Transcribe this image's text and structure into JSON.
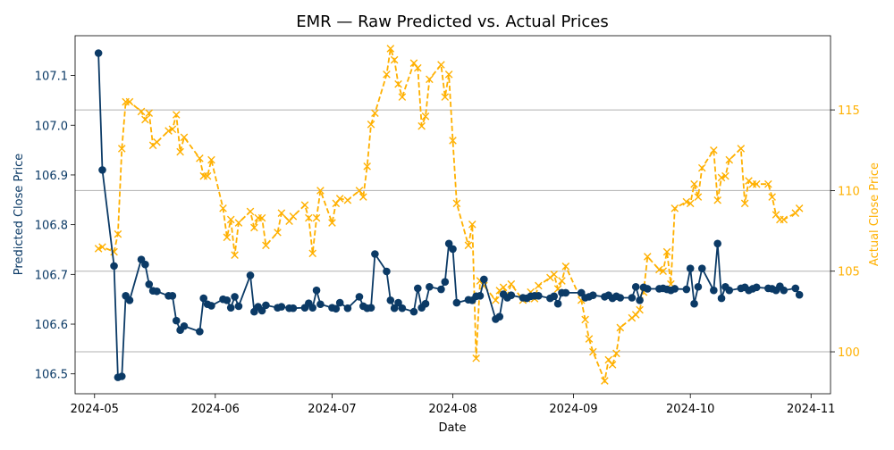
{
  "chart_data": {
    "type": "line",
    "title": "EMR — Raw Predicted vs. Actual Prices",
    "xlabel": "Date",
    "ylabel_left": "Predicted Close Price",
    "ylabel_right": "Actual Close Price",
    "xlim": [
      "2024-04-26",
      "2024-11-06"
    ],
    "ylim_left": [
      106.46,
      107.18
    ],
    "ylim_right": [
      97.4,
      119.6
    ],
    "x_ticks": [
      "2024-05-01",
      "2024-06-01",
      "2024-07-01",
      "2024-08-01",
      "2024-09-01",
      "2024-10-01",
      "2024-11-01"
    ],
    "x_tick_labels": [
      "2024-05",
      "2024-06",
      "2024-07",
      "2024-08",
      "2024-09",
      "2024-10",
      "2024-11"
    ],
    "y_ticks_left": [
      106.5,
      106.6,
      106.7,
      106.8,
      106.9,
      107.0,
      107.1
    ],
    "y_tick_labels_left": [
      "106.5",
      "106.6",
      "106.7",
      "106.8",
      "106.9",
      "107.0",
      "107.1"
    ],
    "y_ticks_right": [
      100,
      105,
      110,
      115
    ],
    "y_tick_labels_right": [
      "100",
      "105",
      "110",
      "115"
    ],
    "grid": "horizontal lines at right-axis ticks",
    "colors": {
      "predicted": "#0b3a66",
      "actual": "#ffb000",
      "grid": "#b0b0b0",
      "axis": "#000000"
    },
    "series": [
      {
        "axis": "left",
        "style": "solid line with circle markers",
        "points": [
          [
            "2024-05-02",
            107.145
          ],
          [
            "2024-05-03",
            106.91
          ],
          [
            "2024-05-06",
            106.717
          ],
          [
            "2024-05-07",
            106.493
          ],
          [
            "2024-05-08",
            106.495
          ],
          [
            "2024-05-09",
            106.657
          ],
          [
            "2024-05-10",
            106.648
          ],
          [
            "2024-05-13",
            106.73
          ],
          [
            "2024-05-14",
            106.72
          ],
          [
            "2024-05-15",
            106.68
          ],
          [
            "2024-05-16",
            106.667
          ],
          [
            "2024-05-17",
            106.666
          ],
          [
            "2024-05-20",
            106.657
          ],
          [
            "2024-05-21",
            106.657
          ],
          [
            "2024-05-22",
            106.607
          ],
          [
            "2024-05-23",
            106.588
          ],
          [
            "2024-05-24",
            106.596
          ],
          [
            "2024-05-28",
            106.585
          ],
          [
            "2024-05-29",
            106.652
          ],
          [
            "2024-05-30",
            106.64
          ],
          [
            "2024-05-31",
            106.637
          ],
          [
            "2024-06-03",
            106.65
          ],
          [
            "2024-06-04",
            106.648
          ],
          [
            "2024-06-05",
            106.633
          ],
          [
            "2024-06-06",
            106.655
          ],
          [
            "2024-06-07",
            106.636
          ],
          [
            "2024-06-10",
            106.698
          ],
          [
            "2024-06-11",
            106.625
          ],
          [
            "2024-06-12",
            106.635
          ],
          [
            "2024-06-13",
            106.627
          ],
          [
            "2024-06-14",
            106.638
          ],
          [
            "2024-06-17",
            106.633
          ],
          [
            "2024-06-18",
            106.635
          ],
          [
            "2024-06-20",
            106.632
          ],
          [
            "2024-06-21",
            106.632
          ],
          [
            "2024-06-24",
            106.633
          ],
          [
            "2024-06-25",
            106.642
          ],
          [
            "2024-06-26",
            106.633
          ],
          [
            "2024-06-27",
            106.668
          ],
          [
            "2024-06-28",
            106.64
          ],
          [
            "2024-07-01",
            106.633
          ],
          [
            "2024-07-02",
            106.631
          ],
          [
            "2024-07-03",
            106.643
          ],
          [
            "2024-07-05",
            106.632
          ],
          [
            "2024-07-08",
            106.655
          ],
          [
            "2024-07-09",
            106.636
          ],
          [
            "2024-07-10",
            106.632
          ],
          [
            "2024-07-11",
            106.633
          ],
          [
            "2024-07-12",
            106.741
          ],
          [
            "2024-07-15",
            106.706
          ],
          [
            "2024-07-16",
            106.648
          ],
          [
            "2024-07-17",
            106.632
          ],
          [
            "2024-07-18",
            106.643
          ],
          [
            "2024-07-19",
            106.632
          ],
          [
            "2024-07-22",
            106.625
          ],
          [
            "2024-07-23",
            106.672
          ],
          [
            "2024-07-24",
            106.633
          ],
          [
            "2024-07-25",
            106.641
          ],
          [
            "2024-07-26",
            106.675
          ],
          [
            "2024-07-29",
            106.67
          ],
          [
            "2024-07-30",
            106.685
          ],
          [
            "2024-07-31",
            106.762
          ],
          [
            "2024-08-01",
            106.751
          ],
          [
            "2024-08-02",
            106.643
          ],
          [
            "2024-08-05",
            106.649
          ],
          [
            "2024-08-06",
            106.648
          ],
          [
            "2024-08-07",
            106.656
          ],
          [
            "2024-08-08",
            106.657
          ],
          [
            "2024-08-09",
            106.69
          ],
          [
            "2024-08-12",
            106.61
          ],
          [
            "2024-08-13",
            106.615
          ],
          [
            "2024-08-14",
            106.66
          ],
          [
            "2024-08-15",
            106.653
          ],
          [
            "2024-08-16",
            106.658
          ],
          [
            "2024-08-19",
            106.653
          ],
          [
            "2024-08-20",
            106.652
          ],
          [
            "2024-08-21",
            106.656
          ],
          [
            "2024-08-22",
            106.657
          ],
          [
            "2024-08-23",
            106.657
          ],
          [
            "2024-08-26",
            106.652
          ],
          [
            "2024-08-27",
            106.656
          ],
          [
            "2024-08-28",
            106.641
          ],
          [
            "2024-08-29",
            106.663
          ],
          [
            "2024-08-30",
            106.663
          ],
          [
            "2024-09-03",
            106.663
          ],
          [
            "2024-09-04",
            106.653
          ],
          [
            "2024-09-05",
            106.655
          ],
          [
            "2024-09-06",
            106.658
          ],
          [
            "2024-09-09",
            106.655
          ],
          [
            "2024-09-10",
            106.658
          ],
          [
            "2024-09-11",
            106.652
          ],
          [
            "2024-09-12",
            106.656
          ],
          [
            "2024-09-13",
            106.653
          ],
          [
            "2024-09-16",
            106.653
          ],
          [
            "2024-09-17",
            106.675
          ],
          [
            "2024-09-18",
            106.648
          ],
          [
            "2024-09-19",
            106.674
          ],
          [
            "2024-09-20",
            106.671
          ],
          [
            "2024-09-23",
            106.671
          ],
          [
            "2024-09-24",
            106.672
          ],
          [
            "2024-09-25",
            106.67
          ],
          [
            "2024-09-26",
            106.668
          ],
          [
            "2024-09-27",
            106.671
          ],
          [
            "2024-09-30",
            106.67
          ],
          [
            "2024-10-01",
            106.712
          ],
          [
            "2024-10-02",
            106.641
          ],
          [
            "2024-10-03",
            106.675
          ],
          [
            "2024-10-04",
            106.712
          ],
          [
            "2024-10-07",
            106.668
          ],
          [
            "2024-10-08",
            106.762
          ],
          [
            "2024-10-09",
            106.652
          ],
          [
            "2024-10-10",
            106.675
          ],
          [
            "2024-10-11",
            106.668
          ],
          [
            "2024-10-14",
            106.672
          ],
          [
            "2024-10-15",
            106.674
          ],
          [
            "2024-10-16",
            106.668
          ],
          [
            "2024-10-17",
            106.671
          ],
          [
            "2024-10-18",
            106.674
          ],
          [
            "2024-10-21",
            106.672
          ],
          [
            "2024-10-22",
            106.671
          ],
          [
            "2024-10-23",
            106.668
          ],
          [
            "2024-10-24",
            106.676
          ],
          [
            "2024-10-25",
            106.668
          ],
          [
            "2024-10-28",
            106.672
          ],
          [
            "2024-10-29",
            106.659
          ]
        ]
      },
      {
        "axis": "right",
        "style": "dashed line with x markers",
        "points": [
          [
            "2024-05-02",
            106.4
          ],
          [
            "2024-05-03",
            106.5
          ],
          [
            "2024-05-06",
            106.2
          ],
          [
            "2024-05-07",
            107.3
          ],
          [
            "2024-05-08",
            112.6
          ],
          [
            "2024-05-09",
            115.5
          ],
          [
            "2024-05-10",
            115.5
          ],
          [
            "2024-05-13",
            114.9
          ],
          [
            "2024-05-14",
            114.4
          ],
          [
            "2024-05-15",
            114.8
          ],
          [
            "2024-05-16",
            112.8
          ],
          [
            "2024-05-17",
            113.0
          ],
          [
            "2024-05-20",
            113.7
          ],
          [
            "2024-05-21",
            113.8
          ],
          [
            "2024-05-22",
            114.7
          ],
          [
            "2024-05-23",
            112.4
          ],
          [
            "2024-05-24",
            113.3
          ],
          [
            "2024-05-28",
            112.0
          ],
          [
            "2024-05-29",
            110.9
          ],
          [
            "2024-05-30",
            110.9
          ],
          [
            "2024-05-31",
            111.9
          ],
          [
            "2024-06-03",
            108.9
          ],
          [
            "2024-06-04",
            107.1
          ],
          [
            "2024-06-05",
            108.2
          ],
          [
            "2024-06-06",
            106.0
          ],
          [
            "2024-06-07",
            108.0
          ],
          [
            "2024-06-10",
            108.7
          ],
          [
            "2024-06-11",
            107.7
          ],
          [
            "2024-06-12",
            108.3
          ],
          [
            "2024-06-13",
            108.3
          ],
          [
            "2024-06-14",
            106.6
          ],
          [
            "2024-06-17",
            107.4
          ],
          [
            "2024-06-18",
            108.6
          ],
          [
            "2024-06-20",
            108.1
          ],
          [
            "2024-06-21",
            108.4
          ],
          [
            "2024-06-24",
            109.1
          ],
          [
            "2024-06-25",
            108.3
          ],
          [
            "2024-06-26",
            106.1
          ],
          [
            "2024-06-27",
            108.3
          ],
          [
            "2024-06-28",
            110.0
          ],
          [
            "2024-07-01",
            108.0
          ],
          [
            "2024-07-02",
            109.2
          ],
          [
            "2024-07-03",
            109.5
          ],
          [
            "2024-07-05",
            109.4
          ],
          [
            "2024-07-08",
            110.0
          ],
          [
            "2024-07-09",
            109.6
          ],
          [
            "2024-07-10",
            111.5
          ],
          [
            "2024-07-11",
            114.1
          ],
          [
            "2024-07-12",
            114.8
          ],
          [
            "2024-07-15",
            117.2
          ],
          [
            "2024-07-16",
            118.8
          ],
          [
            "2024-07-17",
            118.1
          ],
          [
            "2024-07-18",
            116.6
          ],
          [
            "2024-07-19",
            115.8
          ],
          [
            "2024-07-22",
            117.9
          ],
          [
            "2024-07-23",
            117.6
          ],
          [
            "2024-07-24",
            114.0
          ],
          [
            "2024-07-25",
            114.6
          ],
          [
            "2024-07-26",
            116.9
          ],
          [
            "2024-07-29",
            117.8
          ],
          [
            "2024-07-30",
            115.8
          ],
          [
            "2024-07-31",
            117.2
          ],
          [
            "2024-08-01",
            113.1
          ],
          [
            "2024-08-02",
            109.2
          ],
          [
            "2024-08-05",
            106.6
          ],
          [
            "2024-08-06",
            107.9
          ],
          [
            "2024-08-07",
            99.6
          ],
          [
            "2024-08-08",
            104.4
          ],
          [
            "2024-08-09",
            104.1
          ],
          [
            "2024-08-12",
            103.2
          ],
          [
            "2024-08-13",
            103.8
          ],
          [
            "2024-08-14",
            104.0
          ],
          [
            "2024-08-15",
            103.5
          ],
          [
            "2024-08-16",
            104.2
          ],
          [
            "2024-08-19",
            103.2
          ],
          [
            "2024-08-20",
            103.3
          ],
          [
            "2024-08-21",
            103.7
          ],
          [
            "2024-08-22",
            103.3
          ],
          [
            "2024-08-23",
            104.1
          ],
          [
            "2024-08-26",
            104.6
          ],
          [
            "2024-08-27",
            104.8
          ],
          [
            "2024-08-28",
            103.9
          ],
          [
            "2024-08-29",
            104.4
          ],
          [
            "2024-08-30",
            105.3
          ],
          [
            "2024-09-03",
            103.2
          ],
          [
            "2024-09-04",
            102.0
          ],
          [
            "2024-09-05",
            100.8
          ],
          [
            "2024-09-06",
            100.0
          ],
          [
            "2024-09-09",
            98.2
          ],
          [
            "2024-09-10",
            99.5
          ],
          [
            "2024-09-11",
            99.2
          ],
          [
            "2024-09-12",
            99.9
          ],
          [
            "2024-09-13",
            101.5
          ],
          [
            "2024-09-16",
            102.1
          ],
          [
            "2024-09-17",
            102.3
          ],
          [
            "2024-09-18",
            102.6
          ],
          [
            "2024-09-19",
            103.7
          ],
          [
            "2024-09-20",
            105.9
          ],
          [
            "2024-09-23",
            105.1
          ],
          [
            "2024-09-24",
            105.0
          ],
          [
            "2024-09-25",
            106.2
          ],
          [
            "2024-09-26",
            104.2
          ],
          [
            "2024-09-27",
            108.9
          ],
          [
            "2024-09-30",
            109.3
          ],
          [
            "2024-10-01",
            109.2
          ],
          [
            "2024-10-02",
            110.4
          ],
          [
            "2024-10-03",
            109.6
          ],
          [
            "2024-10-04",
            111.4
          ],
          [
            "2024-10-07",
            112.5
          ],
          [
            "2024-10-08",
            109.4
          ],
          [
            "2024-10-09",
            110.8
          ],
          [
            "2024-10-10",
            110.9
          ],
          [
            "2024-10-11",
            111.9
          ],
          [
            "2024-10-14",
            112.6
          ],
          [
            "2024-10-15",
            109.2
          ],
          [
            "2024-10-16",
            110.6
          ],
          [
            "2024-10-17",
            110.4
          ],
          [
            "2024-10-18",
            110.4
          ],
          [
            "2024-10-21",
            110.4
          ],
          [
            "2024-10-22",
            109.6
          ],
          [
            "2024-10-23",
            108.5
          ],
          [
            "2024-10-24",
            108.2
          ],
          [
            "2024-10-25",
            108.2
          ],
          [
            "2024-10-28",
            108.6
          ],
          [
            "2024-10-29",
            108.9
          ]
        ]
      }
    ]
  }
}
